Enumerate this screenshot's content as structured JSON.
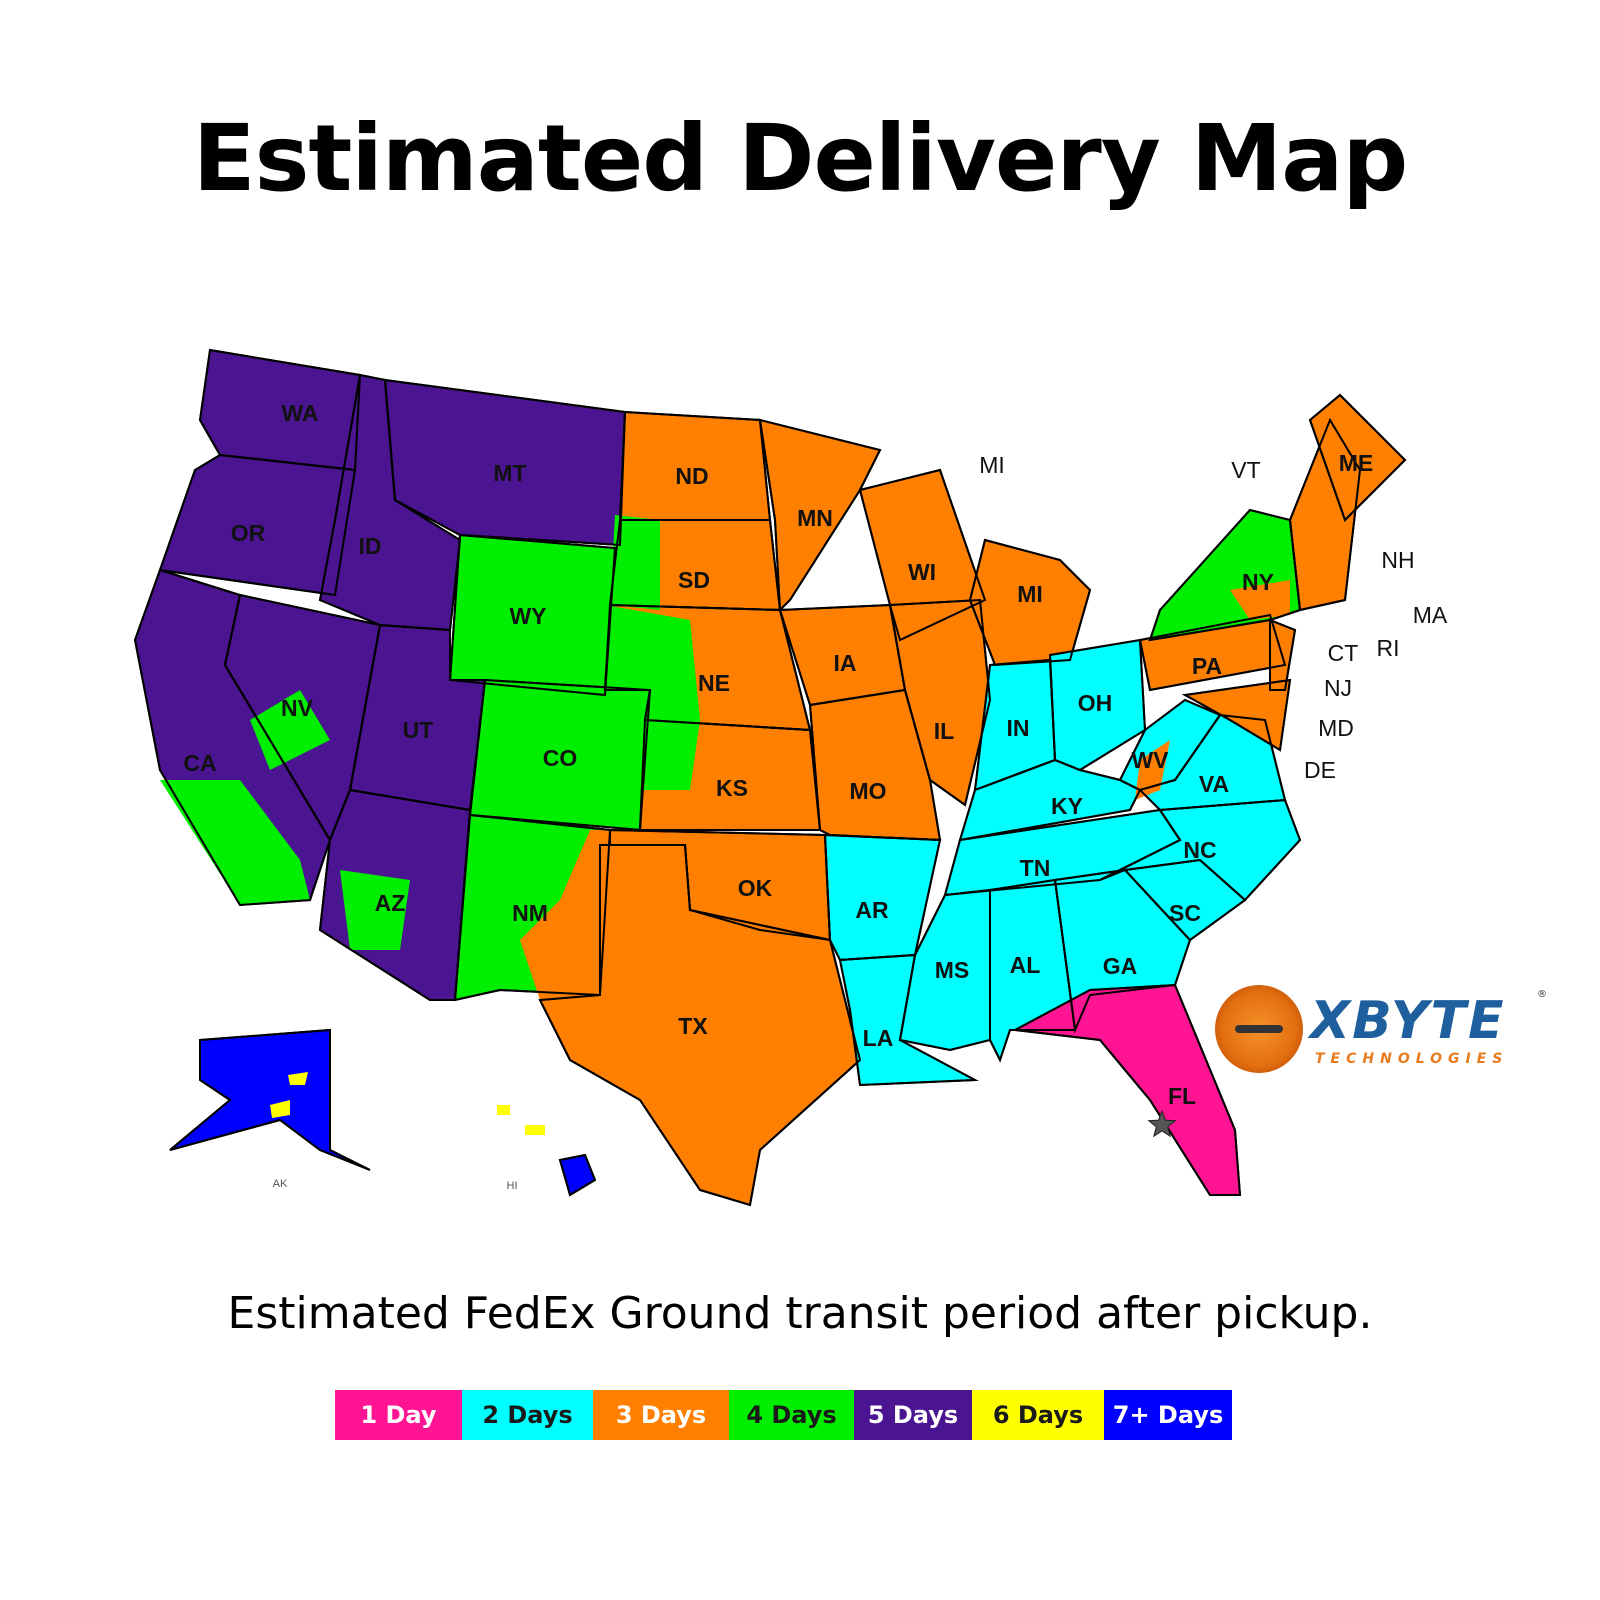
{
  "title": "Estimated Delivery Map",
  "subtitle": "Estimated FedEx Ground transit period after pickup.",
  "legend": [
    {
      "label": "1 Day",
      "color": "#ff1493",
      "text_color": "#ffffff"
    },
    {
      "label": "2 Days",
      "color": "#00ffff",
      "text_color": "#1a1a1a"
    },
    {
      "label": "3 Days",
      "color": "#ff7f00",
      "text_color": "#ffffff"
    },
    {
      "label": "4 Days",
      "color": "#00ee00",
      "text_color": "#1a1a1a"
    },
    {
      "label": "5 Days",
      "color": "#4b1490",
      "text_color": "#ffffff"
    },
    {
      "label": "6 Days",
      "color": "#ffff00",
      "text_color": "#1a1a1a"
    },
    {
      "label": "7+ Days",
      "color": "#0000ff",
      "text_color": "#ffffff"
    }
  ],
  "states": [
    {
      "code": "WA",
      "days": "5 Days"
    },
    {
      "code": "OR",
      "days": "5 Days"
    },
    {
      "code": "CA",
      "days": "5 Days"
    },
    {
      "code": "NV",
      "days": "5 Days"
    },
    {
      "code": "ID",
      "days": "5 Days"
    },
    {
      "code": "MT",
      "days": "5 Days"
    },
    {
      "code": "WY",
      "days": "4 Days"
    },
    {
      "code": "UT",
      "days": "5 Days"
    },
    {
      "code": "CO",
      "days": "4 Days"
    },
    {
      "code": "AZ",
      "days": "5 Days"
    },
    {
      "code": "NM",
      "days": "4 Days"
    },
    {
      "code": "ND",
      "days": "3 Days"
    },
    {
      "code": "SD",
      "days": "3 Days"
    },
    {
      "code": "NE",
      "days": "3 Days"
    },
    {
      "code": "KS",
      "days": "3 Days"
    },
    {
      "code": "OK",
      "days": "3 Days"
    },
    {
      "code": "TX",
      "days": "3 Days"
    },
    {
      "code": "MN",
      "days": "3 Days"
    },
    {
      "code": "IA",
      "days": "3 Days"
    },
    {
      "code": "MO",
      "days": "3 Days"
    },
    {
      "code": "AR",
      "days": "2 Days"
    },
    {
      "code": "LA",
      "days": "2 Days"
    },
    {
      "code": "WI",
      "days": "3 Days"
    },
    {
      "code": "IL",
      "days": "3 Days"
    },
    {
      "code": "MI",
      "days": "3 Days"
    },
    {
      "code": "IN",
      "days": "2 Days"
    },
    {
      "code": "OH",
      "days": "2 Days"
    },
    {
      "code": "KY",
      "days": "2 Days"
    },
    {
      "code": "TN",
      "days": "2 Days"
    },
    {
      "code": "MS",
      "days": "2 Days"
    },
    {
      "code": "AL",
      "days": "2 Days"
    },
    {
      "code": "GA",
      "days": "2 Days"
    },
    {
      "code": "FL",
      "days": "1 Day"
    },
    {
      "code": "SC",
      "days": "2 Days"
    },
    {
      "code": "NC",
      "days": "2 Days"
    },
    {
      "code": "VA",
      "days": "2 Days"
    },
    {
      "code": "WV",
      "days": "2 Days"
    },
    {
      "code": "PA",
      "days": "3 Days"
    },
    {
      "code": "NY",
      "days": "4 Days"
    },
    {
      "code": "NJ",
      "days": "3 Days"
    },
    {
      "code": "MD",
      "days": "3 Days"
    },
    {
      "code": "NE_ENG",
      "days": "3 Days"
    },
    {
      "code": "ME",
      "days": "3 Days"
    },
    {
      "code": "AK",
      "days": "7+ Days"
    },
    {
      "code": "HI",
      "days": "7+ Days"
    }
  ],
  "labels": {
    "inside": [
      "WA",
      "OR",
      "CA",
      "NV",
      "ID",
      "MT",
      "WY",
      "UT",
      "CO",
      "AZ",
      "NM",
      "ND",
      "SD",
      "NE",
      "KS",
      "OK",
      "TX",
      "MN",
      "IA",
      "MO",
      "AR",
      "LA",
      "WI",
      "IL",
      "MI",
      "IN",
      "OH",
      "KY",
      "TN",
      "MS",
      "AL",
      "GA",
      "FL",
      "SC",
      "NC",
      "VA",
      "WV",
      "PA",
      "NY",
      "ME"
    ],
    "outside": [
      "MI",
      "VT",
      "NH",
      "MA",
      "CT",
      "RI",
      "NJ",
      "MD",
      "DE",
      "AK",
      "HI"
    ]
  },
  "origin_marker": "star-icon",
  "logo": {
    "name": "XBYTE",
    "tagline": "TECHNOLOGIES",
    "mark": "®"
  }
}
